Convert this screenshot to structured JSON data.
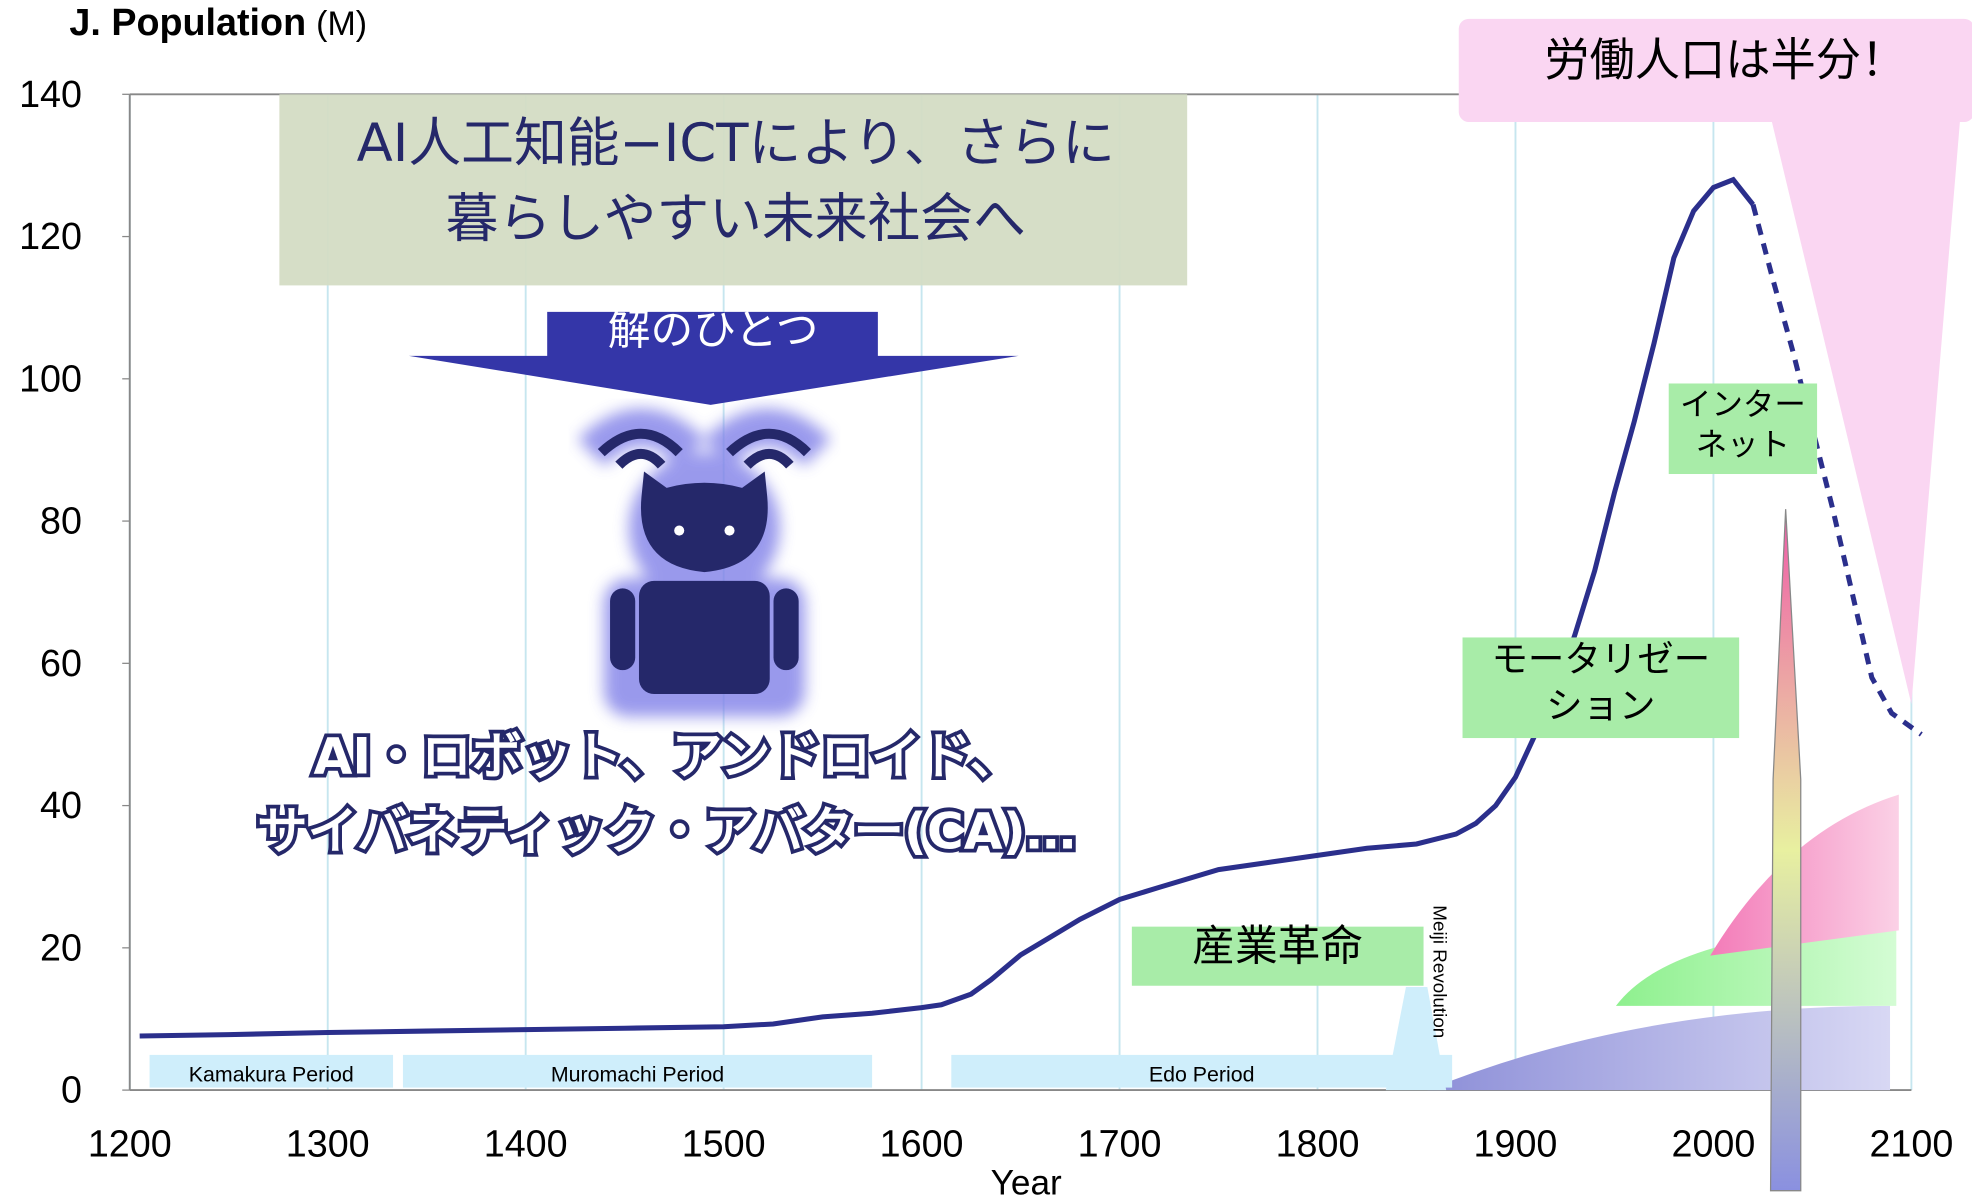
{
  "chart_data": {
    "type": "line",
    "title": "J. Population",
    "title_unit": "(M)",
    "x_label": "Year",
    "x": [
      1205,
      1250,
      1300,
      1350,
      1400,
      1450,
      1500,
      1525,
      1550,
      1575,
      1600,
      1610,
      1625,
      1635,
      1650,
      1665,
      1680,
      1700,
      1720,
      1750,
      1775,
      1800,
      1825,
      1850,
      1870,
      1880,
      1890,
      1900,
      1910,
      1920,
      1930,
      1940,
      1950,
      1960,
      1970,
      1980,
      1990,
      2000,
      2010,
      2020,
      2030,
      2040,
      2050,
      2060,
      2070,
      2080,
      2090,
      2105
    ],
    "series": [
      {
        "color": "#2b2f8c",
        "style": "solid",
        "values": [
          7.6,
          7.8,
          8.1,
          8.3,
          8.5,
          8.7,
          8.9,
          9.3,
          10.3,
          10.8,
          11.6,
          12,
          13.5,
          15.5,
          19,
          21.5,
          24,
          26.8,
          28.5,
          31,
          32,
          33,
          34,
          34.6,
          36,
          37.5,
          40,
          44,
          50,
          56,
          64,
          73,
          84,
          94,
          105,
          117,
          123.6,
          126.9,
          128,
          124.5,
          null,
          null,
          null,
          null,
          null,
          null,
          null,
          null
        ]
      },
      {
        "color": "#2b2f8c",
        "style": "dashed",
        "values": [
          null,
          null,
          null,
          null,
          null,
          null,
          null,
          null,
          null,
          null,
          null,
          null,
          null,
          null,
          null,
          null,
          null,
          null,
          null,
          null,
          null,
          null,
          null,
          null,
          null,
          null,
          null,
          null,
          null,
          null,
          null,
          null,
          null,
          null,
          null,
          null,
          null,
          null,
          null,
          124.5,
          114,
          104,
          93,
          82,
          70,
          58,
          53,
          50
        ]
      }
    ],
    "xlim": [
      1200,
      2100
    ],
    "xticks": [
      1200,
      1300,
      1400,
      1500,
      1600,
      1700,
      1800,
      1900,
      2000,
      2100
    ],
    "ylim": [
      0,
      140
    ],
    "yticks": [
      0,
      20,
      40,
      60,
      80,
      100,
      120,
      140
    ],
    "grid": true,
    "periods": [
      {
        "label": "Kamakura Period",
        "start": 1210,
        "end": 1333
      },
      {
        "label": "Muromachi Period",
        "start": 1338,
        "end": 1575
      },
      {
        "label": "Edo Period",
        "start": 1615,
        "end": 1868
      }
    ],
    "annotations": {
      "meiji": "Meiji Revolution",
      "labor": "労働人口は半分！",
      "vision": [
        "AI人工知能−ICTにより、さらに",
        "暮らしやすい未来社会へ"
      ],
      "solution": "解のひとつ",
      "robots": [
        "AI・ロボット、アンドロイド、",
        "サイバネティック・アバター(CA)…"
      ],
      "internet": [
        "インター",
        "ネット"
      ],
      "motorization": [
        "モータリゼー",
        "ション"
      ],
      "industrial": "産業革命"
    }
  }
}
